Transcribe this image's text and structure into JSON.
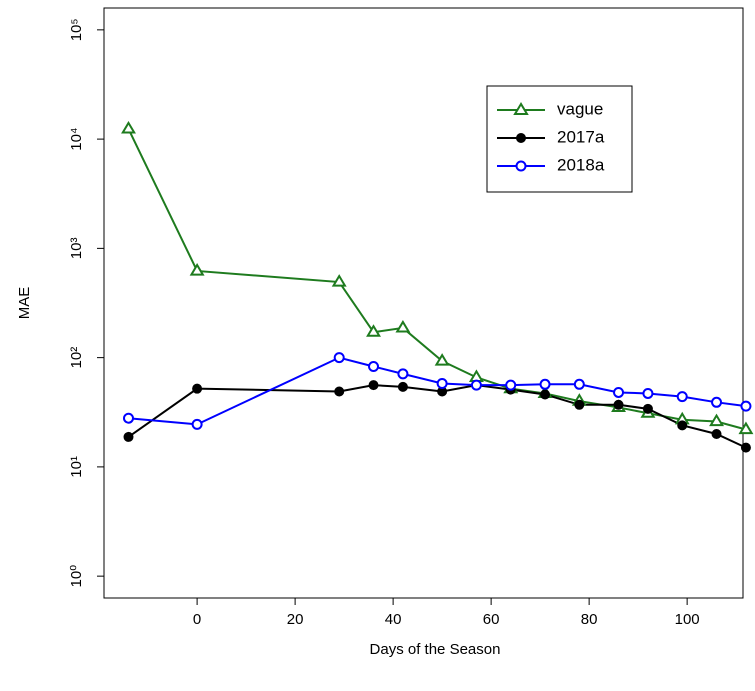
{
  "chart_data": {
    "type": "line",
    "x_label": "Days of the Season",
    "y_label": "MAE",
    "x": [
      -14,
      0,
      29,
      36,
      42,
      50,
      57,
      64,
      71,
      78,
      86,
      92,
      99,
      106,
      112
    ],
    "series": [
      {
        "name": "vague",
        "color": "#1e7b1e",
        "marker": "triangle",
        "values": [
          12400,
          621,
          492,
          171,
          187,
          93,
          66,
          52,
          47,
          40,
          35,
          31,
          27,
          26,
          22
        ]
      },
      {
        "name": "2017a",
        "color": "#000000",
        "marker": "filled-circle",
        "values": [
          18.8,
          52,
          49,
          56,
          54,
          49,
          56,
          51,
          46,
          37,
          37,
          34,
          24,
          20,
          15
        ]
      },
      {
        "name": "2018a",
        "color": "#0000ff",
        "marker": "circle",
        "values": [
          27.9,
          24.5,
          100,
          83,
          71,
          58,
          56,
          56,
          57,
          57,
          48,
          47,
          44,
          39,
          36
        ]
      }
    ],
    "xlim": [
      -19,
      111.4
    ],
    "xticks": [
      0,
      20,
      40,
      60,
      80,
      100
    ],
    "ylim": [
      0.631,
      158489
    ],
    "log_y": true,
    "yticks": [
      {
        "value": 1,
        "label": "10⁰"
      },
      {
        "value": 10,
        "label": "10¹"
      },
      {
        "value": 100,
        "label": "10²"
      },
      {
        "value": 1000,
        "label": "10³"
      },
      {
        "value": 10000,
        "label": "10⁴"
      },
      {
        "value": 100000,
        "label": "10⁵"
      }
    ],
    "grid": false,
    "legend_position": "upper-right"
  }
}
